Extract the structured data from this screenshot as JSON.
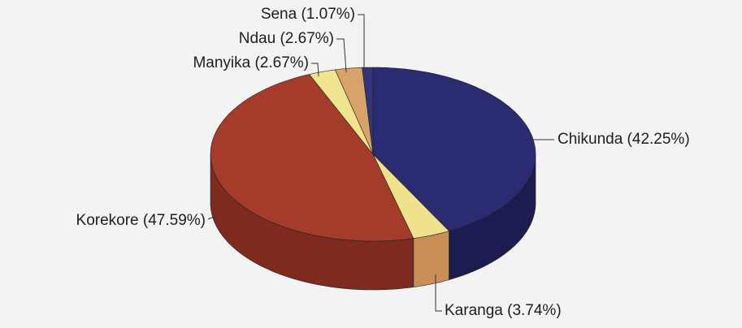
{
  "chart_data": {
    "type": "pie3d",
    "values": [
      42.25,
      3.74,
      47.59,
      2.67,
      2.67,
      1.07
    ],
    "value_labels": [
      "Chikunda (42.25%)",
      "Karanga (3.74%)",
      "Korekore (47.59%)",
      "Manyika (2.67%)",
      "Ndau (2.67%)",
      "Sena (1.07%)"
    ],
    "colors": [
      "#2b2b72",
      "#efe28c",
      "#a53b2b",
      "#f1e48e",
      "#d9a266",
      "#34347a"
    ],
    "side_colors": [
      "#1c1c50",
      "#c98e54",
      "#7e2a1f",
      "#c9b865",
      "#a97840",
      "#22225a"
    ]
  }
}
